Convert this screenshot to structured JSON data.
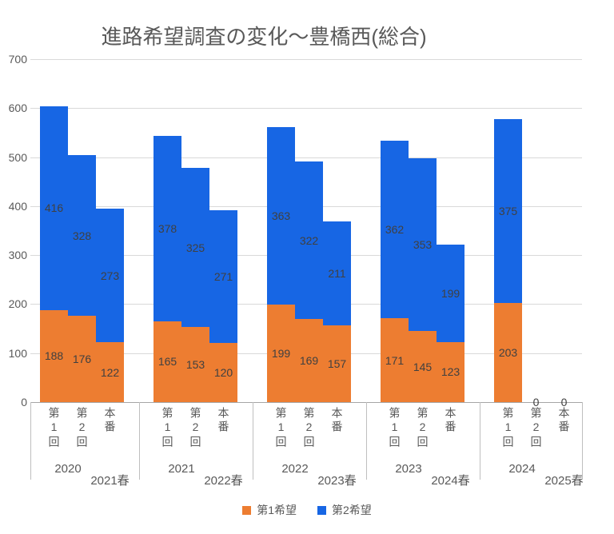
{
  "chart_data": {
    "type": "bar",
    "stacked": true,
    "title": "進路希望調査の変化～豊橋西(総合)",
    "legend_position": "bottom",
    "grid": true,
    "data_labels": true,
    "y_axis": {
      "min": 0,
      "max": 700,
      "step": 100,
      "tick_labels": [
        "0",
        "100",
        "200",
        "300",
        "400",
        "500",
        "600",
        "700"
      ]
    },
    "bar_categories": [
      "第1回",
      "第2回",
      "本番"
    ],
    "groups": [
      {
        "label_main": "2020",
        "label_sub": "2021春"
      },
      {
        "label_main": "2021",
        "label_sub": "2022春"
      },
      {
        "label_main": "2022",
        "label_sub": "2023春"
      },
      {
        "label_main": "2023",
        "label_sub": "2024春"
      },
      {
        "label_main": "2024",
        "label_sub": "2025春"
      }
    ],
    "series": [
      {
        "name": "第1希望",
        "color": "#ED7D31",
        "values": [
          [
            188,
            176,
            122
          ],
          [
            165,
            153,
            120
          ],
          [
            199,
            169,
            157
          ],
          [
            171,
            145,
            123
          ],
          [
            203,
            0,
            0
          ]
        ]
      },
      {
        "name": "第2希望",
        "color": "#1766E4",
        "values": [
          [
            416,
            328,
            273
          ],
          [
            378,
            325,
            271
          ],
          [
            363,
            322,
            211
          ],
          [
            362,
            353,
            199
          ],
          [
            375,
            0,
            0
          ]
        ]
      }
    ]
  }
}
